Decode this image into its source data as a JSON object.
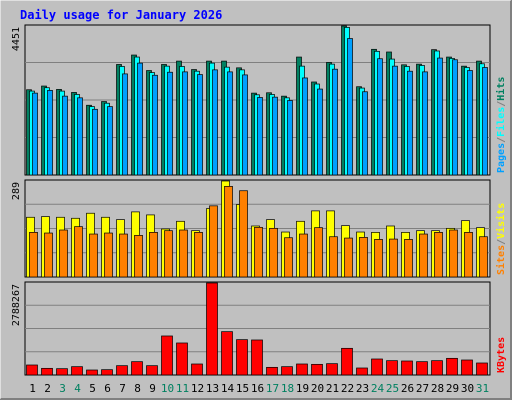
{
  "title": "Daily usage for January 2026",
  "colors": {
    "frame_bg": "#c0c0c0",
    "panel_bg": "#c0c0c0",
    "grid": "#808080",
    "title": "#0000ff",
    "hits": "#008060",
    "files": "#00ffff",
    "pages": "#00a0ff",
    "visits": "#ffff00",
    "sites": "#ff8000",
    "kbytes": "#ff0000",
    "weekend_day": "#008060",
    "weekday_day": "#000000"
  },
  "chart_data": [
    {
      "type": "bar",
      "name": "hits-files-pages",
      "ymax": 4451,
      "ymax_label": "4451",
      "legend": [
        "Pages",
        "/",
        "Files",
        "/",
        "Hits"
      ],
      "categories": [
        "1",
        "2",
        "3",
        "4",
        "5",
        "6",
        "7",
        "8",
        "9",
        "10",
        "11",
        "12",
        "13",
        "14",
        "15",
        "16",
        "17",
        "18",
        "19",
        "20",
        "21",
        "22",
        "23",
        "24",
        "25",
        "26",
        "27",
        "28",
        "29",
        "30",
        "31"
      ],
      "series": [
        {
          "name": "Hits",
          "values": [
            2530,
            2640,
            2540,
            2450,
            2070,
            2180,
            3280,
            3560,
            3100,
            3280,
            3380,
            3130,
            3380,
            3380,
            3180,
            2430,
            2440,
            2340,
            3500,
            2760,
            3340,
            4480,
            2620,
            3730,
            3650,
            3270,
            3290,
            3720,
            3500,
            3230,
            3380
          ]
        },
        {
          "name": "Files",
          "values": [
            2490,
            2590,
            2490,
            2390,
            2030,
            2130,
            3220,
            3500,
            3040,
            3230,
            3220,
            3080,
            3320,
            3200,
            3120,
            2380,
            2390,
            2290,
            3230,
            2700,
            3290,
            4380,
            2580,
            3670,
            3440,
            3220,
            3250,
            3680,
            3460,
            3190,
            3300
          ]
        },
        {
          "name": "Pages",
          "values": [
            2430,
            2510,
            2340,
            2290,
            1950,
            2030,
            3000,
            3320,
            2960,
            3050,
            3060,
            2980,
            3120,
            3060,
            2970,
            2300,
            2310,
            2210,
            2880,
            2550,
            3140,
            4050,
            2470,
            3450,
            3230,
            3080,
            3060,
            3470,
            3420,
            3100,
            3190
          ]
        }
      ]
    },
    {
      "type": "bar",
      "name": "visits-sites",
      "ymax": 289,
      "ymax_label": "289",
      "legend": [
        "Sites",
        "/",
        "Visits"
      ],
      "categories": [
        "1",
        "2",
        "3",
        "4",
        "5",
        "6",
        "7",
        "8",
        "9",
        "10",
        "11",
        "12",
        "13",
        "14",
        "15",
        "16",
        "17",
        "18",
        "19",
        "20",
        "21",
        "22",
        "23",
        "24",
        "25",
        "26",
        "27",
        "28",
        "29",
        "30",
        "31"
      ],
      "series": [
        {
          "name": "Visits",
          "values": [
            178,
            180,
            178,
            175,
            190,
            178,
            171,
            194,
            185,
            143,
            166,
            138,
            204,
            286,
            216,
            152,
            171,
            134,
            166,
            197,
            197,
            153,
            134,
            133,
            152,
            133,
            138,
            138,
            145,
            168,
            147
          ]
        },
        {
          "name": "Sites",
          "values": [
            133,
            131,
            140,
            150,
            128,
            131,
            128,
            124,
            133,
            138,
            140,
            133,
            212,
            270,
            257,
            148,
            145,
            117,
            128,
            147,
            120,
            116,
            118,
            112,
            113,
            112,
            128,
            133,
            140,
            133,
            120
          ]
        }
      ]
    },
    {
      "type": "bar",
      "name": "kbytes",
      "ymax": 2788267,
      "ymax_label": "2788267",
      "legend": [
        "KBytes"
      ],
      "categories": [
        "1",
        "2",
        "3",
        "4",
        "5",
        "6",
        "7",
        "8",
        "9",
        "10",
        "11",
        "12",
        "13",
        "14",
        "15",
        "16",
        "17",
        "18",
        "19",
        "20",
        "21",
        "22",
        "23",
        "24",
        "25",
        "26",
        "27",
        "28",
        "29",
        "30",
        "31"
      ],
      "series": [
        {
          "name": "KBytes",
          "values": [
            300000,
            200000,
            190000,
            250000,
            150000,
            160000,
            280000,
            400000,
            280000,
            1170000,
            960000,
            330000,
            2820000,
            1300000,
            1060000,
            1050000,
            230000,
            250000,
            330000,
            320000,
            340000,
            800000,
            210000,
            480000,
            430000,
            420000,
            400000,
            430000,
            500000,
            450000,
            360000
          ]
        }
      ]
    }
  ],
  "days": [
    "1",
    "2",
    "3",
    "4",
    "5",
    "6",
    "7",
    "8",
    "9",
    "10",
    "11",
    "12",
    "13",
    "14",
    "15",
    "16",
    "17",
    "18",
    "19",
    "20",
    "21",
    "22",
    "23",
    "24",
    "25",
    "26",
    "27",
    "28",
    "29",
    "30",
    "31"
  ],
  "weekend_days": [
    "3",
    "4",
    "10",
    "11",
    "17",
    "18",
    "24",
    "25",
    "31"
  ]
}
